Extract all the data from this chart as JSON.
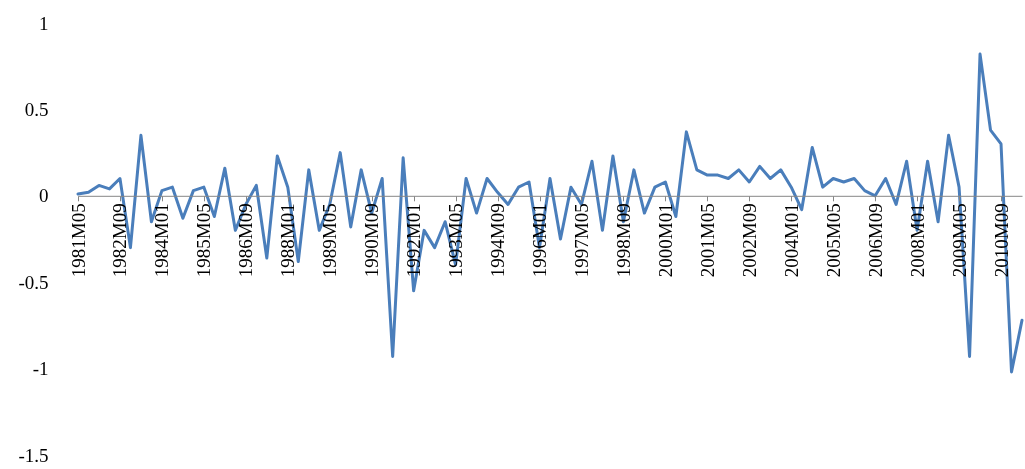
{
  "chart_data": {
    "type": "line",
    "categories": [
      "1981M05",
      null,
      null,
      null,
      "1982M09",
      null,
      null,
      null,
      "1984M01",
      null,
      null,
      null,
      "1985M05",
      null,
      null,
      null,
      "1986M09",
      null,
      null,
      null,
      "1988M01",
      null,
      null,
      null,
      "1989M05",
      null,
      null,
      null,
      "1990M09",
      null,
      null,
      null,
      "1992M01",
      null,
      null,
      null,
      "1993M05",
      null,
      null,
      null,
      "1994M09",
      null,
      null,
      null,
      "1996M01",
      null,
      null,
      null,
      "1997M05",
      null,
      null,
      null,
      "1998M09",
      null,
      null,
      null,
      "2000M01",
      null,
      null,
      null,
      "2001M05",
      null,
      null,
      null,
      "2002M09",
      null,
      null,
      null,
      "2004M01",
      null,
      null,
      null,
      "2005M05",
      null,
      null,
      null,
      "2006M09",
      null,
      null,
      null,
      "2008M01",
      null,
      null,
      null,
      "2009M05",
      null,
      null,
      null,
      "2010M09",
      null,
      null
    ],
    "series": [
      {
        "color": "#4a7ebb",
        "values": [
          0.01,
          0.02,
          0.06,
          0.04,
          0.1,
          -0.3,
          0.35,
          -0.15,
          0.03,
          0.05,
          -0.13,
          0.03,
          0.05,
          -0.12,
          0.16,
          -0.2,
          -0.05,
          0.06,
          -0.36,
          0.23,
          0.05,
          -0.38,
          0.15,
          -0.2,
          -0.05,
          0.25,
          -0.18,
          0.15,
          -0.1,
          0.1,
          -0.93,
          0.22,
          -0.55,
          -0.2,
          -0.3,
          -0.15,
          -0.4,
          0.1,
          -0.1,
          0.1,
          0.02,
          -0.05,
          0.05,
          0.08,
          -0.3,
          0.1,
          -0.25,
          0.05,
          -0.05,
          0.2,
          -0.2,
          0.23,
          -0.15,
          0.15,
          -0.1,
          0.05,
          0.08,
          -0.12,
          0.37,
          0.15,
          0.12,
          0.12,
          0.1,
          0.15,
          0.08,
          0.17,
          0.1,
          0.15,
          0.05,
          -0.08,
          0.28,
          0.05,
          0.1,
          0.08,
          0.1,
          0.03,
          0,
          0.1,
          -0.05,
          0.2,
          -0.2,
          0.2,
          -0.15,
          0.35,
          0.05,
          -0.93,
          0.82,
          0.38,
          0.3,
          -1.02,
          -0.72
        ]
      }
    ],
    "ylim": [
      -1.5,
      1
    ],
    "yticks": [
      {
        "value": -1.5,
        "label": "-1.5"
      },
      -1,
      {
        "value": -0.5,
        "label": "-0.5"
      },
      0,
      0.5,
      1
    ],
    "grid": false,
    "line_style": "solid"
  }
}
